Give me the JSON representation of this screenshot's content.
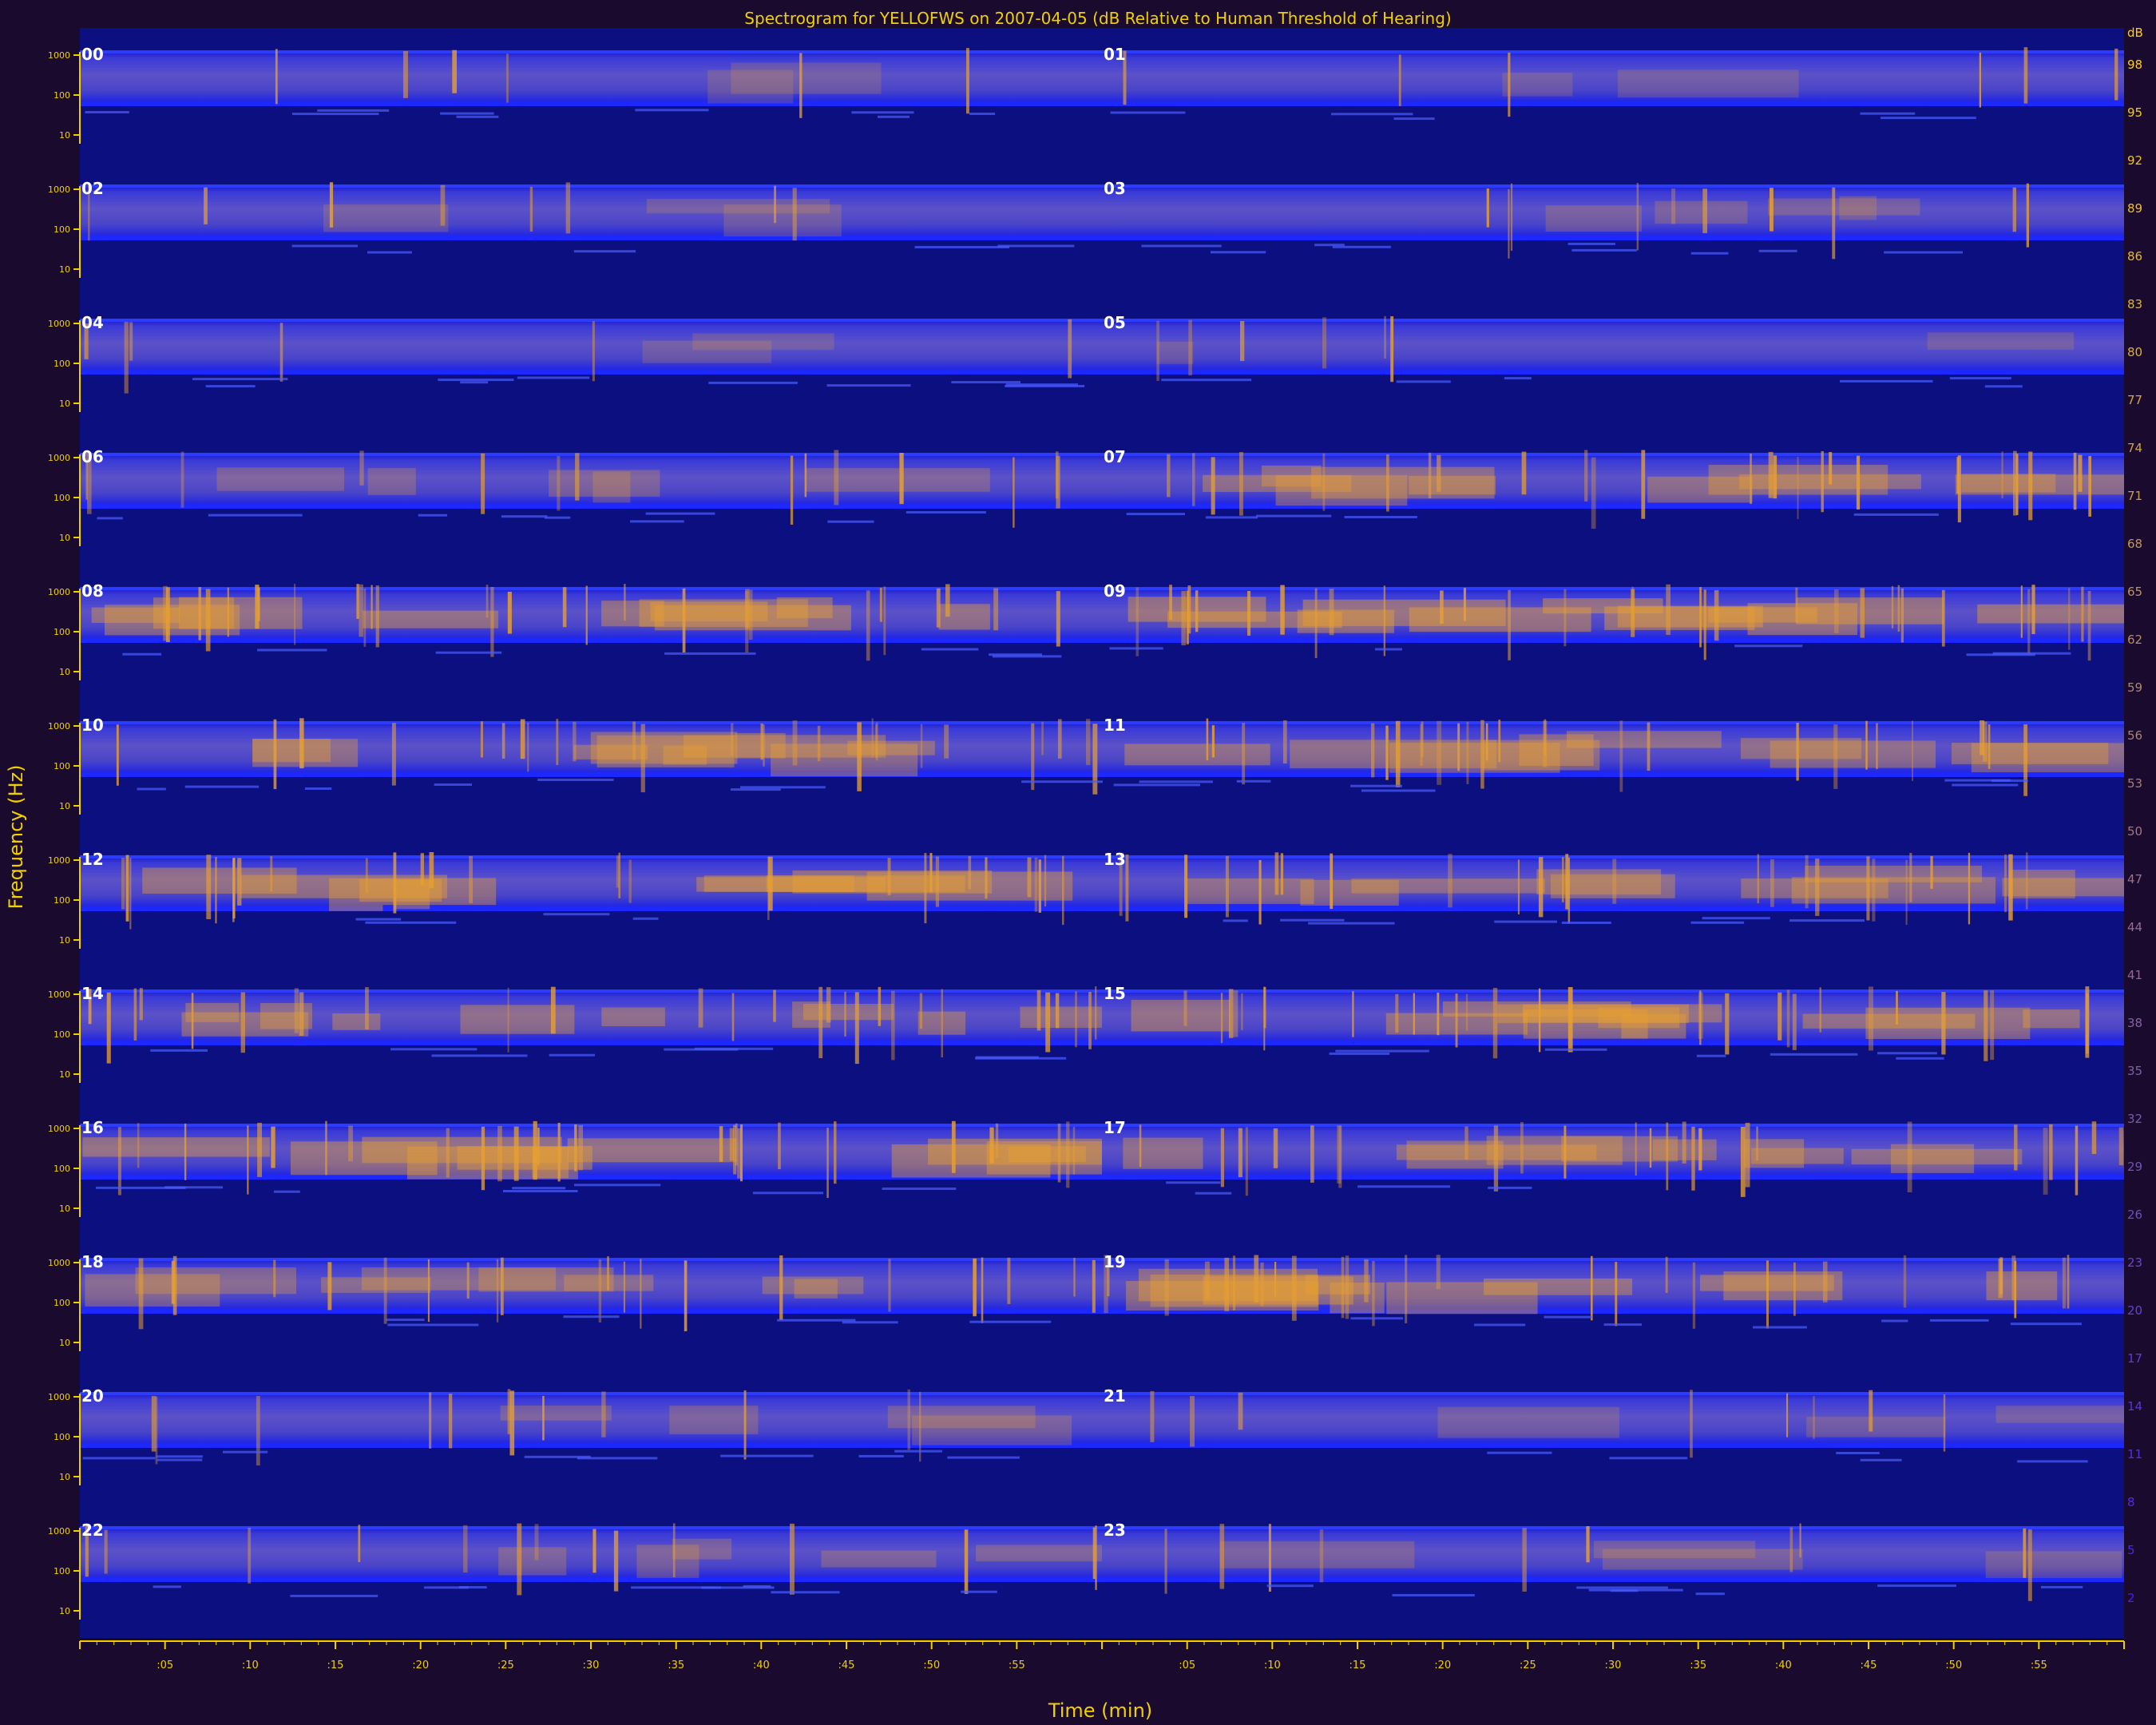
{
  "chart_data": {
    "type": "heatmap",
    "title": "Spectrogram for YELLOFWS on 2007-04-05 (dB Relative to Human Threshold of Hearing)",
    "xlabel": "Time (min)",
    "ylabel": "Frequency (Hz)",
    "x_tick_labels": [
      ":05",
      ":10",
      ":15",
      ":20",
      ":25",
      ":30",
      ":35",
      ":40",
      ":45",
      ":50",
      ":55"
    ],
    "y_tick_labels": [
      "1000",
      "100",
      "10"
    ],
    "rows": [
      {
        "left_hour": "00",
        "right_hour": "01"
      },
      {
        "left_hour": "02",
        "right_hour": "03"
      },
      {
        "left_hour": "04",
        "right_hour": "05"
      },
      {
        "left_hour": "06",
        "right_hour": "07"
      },
      {
        "left_hour": "08",
        "right_hour": "09"
      },
      {
        "left_hour": "10",
        "right_hour": "11"
      },
      {
        "left_hour": "12",
        "right_hour": "13"
      },
      {
        "left_hour": "14",
        "right_hour": "15"
      },
      {
        "left_hour": "16",
        "right_hour": "17"
      },
      {
        "left_hour": "18",
        "right_hour": "19"
      },
      {
        "left_hour": "20",
        "right_hour": "21"
      },
      {
        "left_hour": "22",
        "right_hour": "23"
      }
    ],
    "activity_level": [
      [
        0.15,
        0.15
      ],
      [
        0.2,
        0.25
      ],
      [
        0.15,
        0.15
      ],
      [
        0.35,
        0.7
      ],
      [
        0.75,
        0.85
      ],
      [
        0.7,
        0.7
      ],
      [
        0.75,
        0.7
      ],
      [
        0.7,
        0.75
      ],
      [
        0.8,
        0.7
      ],
      [
        0.55,
        0.75
      ],
      [
        0.3,
        0.2
      ],
      [
        0.35,
        0.25
      ]
    ],
    "colorbar": {
      "unit": "dB",
      "tick_labels": [
        "98",
        "95",
        "92",
        "89",
        "86",
        "83",
        "80",
        "77",
        "74",
        "71",
        "68",
        "65",
        "62",
        "59",
        "56",
        "53",
        "50",
        "47",
        "44",
        "41",
        "38",
        "35",
        "32",
        "29",
        "26",
        "23",
        "20",
        "17",
        "14",
        "11",
        "8",
        "5",
        "2"
      ],
      "colors": [
        "#ffd000",
        "#4020ff"
      ]
    },
    "colors": {
      "background": "#1a0a2e",
      "floor": "#0c0f80",
      "band": "#2a2ee0",
      "bright": "#e8a030",
      "text": "#f0d000"
    }
  }
}
